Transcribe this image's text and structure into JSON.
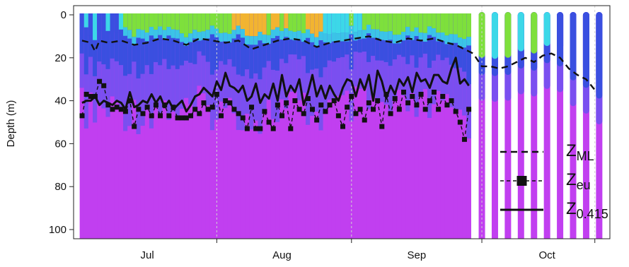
{
  "chart_data": {
    "type": "heatmap",
    "title": "",
    "xlabel": "",
    "ylabel": "Depth (m)",
    "ylim": [
      0,
      105
    ],
    "y_reversed": true,
    "x_range_days": [
      0,
      120
    ],
    "x_ticks": [
      {
        "label": "Jul",
        "day": 15
      },
      {
        "label": "Aug",
        "day": 46
      },
      {
        "label": "Sep",
        "day": 77
      },
      {
        "label": "Oct",
        "day": 107
      }
    ],
    "x_dividers_day": [
      31,
      62,
      92,
      118
    ],
    "y_ticks": [
      0,
      20,
      40,
      60,
      80,
      100
    ],
    "grid": false,
    "legend_position": "bottom-right",
    "color_stops": {
      "surface_green": "#7ee03c",
      "bloom_orange": "#f2b431",
      "cyan": "#3cd8e8",
      "blue": "#3a4fe0",
      "violet": "#7a4ff0",
      "magenta": "#c13ff0"
    },
    "series": [
      {
        "name": "ML",
        "style": "dashed",
        "day": [
          0,
          2,
          3,
          4,
          6,
          9,
          12,
          15,
          18,
          21,
          24,
          27,
          30,
          33,
          36,
          39,
          42,
          45,
          48,
          51,
          54,
          57,
          60,
          63,
          66,
          69,
          72,
          75,
          78,
          81,
          84,
          86,
          87,
          88,
          90,
          92,
          94,
          96,
          98,
          100,
          102,
          104,
          106,
          108,
          110,
          112,
          114,
          116,
          118
        ],
        "depth": [
          12,
          13,
          17,
          12,
          13,
          12,
          14,
          13,
          11,
          12,
          14,
          11,
          12,
          13,
          12,
          16,
          14,
          12,
          11,
          12,
          15,
          13,
          12,
          11,
          10,
          12,
          13,
          11,
          12,
          11,
          13,
          14,
          15,
          16,
          18,
          24,
          24,
          25,
          24,
          22,
          20,
          22,
          19,
          18,
          20,
          25,
          28,
          30,
          35
        ]
      },
      {
        "name": "eu",
        "style": "points",
        "day": [
          0,
          1,
          2,
          3,
          4,
          5,
          6,
          7,
          8,
          9,
          10,
          11,
          12,
          13,
          14,
          15,
          16,
          17,
          18,
          19,
          20,
          21,
          22,
          23,
          24,
          25,
          26,
          27,
          28,
          29,
          30,
          31,
          32,
          33,
          34,
          35,
          36,
          37,
          38,
          39,
          40,
          41,
          42,
          43,
          44,
          45,
          46,
          47,
          48,
          49,
          50,
          51,
          52,
          53,
          54,
          55,
          56,
          57,
          58,
          59,
          60,
          61,
          62,
          63,
          64,
          65,
          66,
          67,
          68,
          69,
          70,
          71,
          72,
          73,
          74,
          75,
          76,
          77,
          78,
          79,
          80,
          81,
          82,
          83,
          84,
          85,
          86,
          87,
          88,
          89
        ],
        "depth": [
          47,
          37,
          38,
          38,
          31,
          33,
          42,
          44,
          43,
          44,
          45,
          40,
          52,
          44,
          46,
          43,
          47,
          42,
          47,
          42,
          47,
          43,
          48,
          48,
          48,
          47,
          44,
          46,
          41,
          44,
          43,
          37,
          47,
          40,
          41,
          44,
          46,
          48,
          53,
          43,
          53,
          53,
          45,
          50,
          53,
          42,
          47,
          41,
          53,
          40,
          44,
          46,
          39,
          44,
          49,
          42,
          45,
          42,
          40,
          47,
          52,
          43,
          38,
          46,
          44,
          49,
          41,
          44,
          40,
          52,
          37,
          46,
          39,
          44,
          36,
          41,
          38,
          42,
          37,
          44,
          40,
          36,
          44,
          38,
          42,
          40,
          45,
          50,
          58,
          44
        ]
      },
      {
        "name": "0.415",
        "style": "line",
        "day": [
          0,
          1,
          2,
          3,
          4,
          5,
          6,
          7,
          8,
          9,
          10,
          11,
          12,
          13,
          14,
          15,
          16,
          17,
          18,
          19,
          20,
          21,
          22,
          23,
          24,
          25,
          26,
          27,
          28,
          29,
          30,
          31,
          32,
          33,
          34,
          35,
          36,
          37,
          38,
          39,
          40,
          41,
          42,
          43,
          44,
          45,
          46,
          47,
          48,
          49,
          50,
          51,
          52,
          53,
          54,
          55,
          56,
          57,
          58,
          59,
          60,
          61,
          62,
          63,
          64,
          65,
          66,
          67,
          68,
          69,
          70,
          71,
          72,
          73,
          74,
          75,
          76,
          77,
          78,
          79,
          80,
          81,
          82,
          83,
          84,
          85,
          86,
          87,
          88,
          89
        ],
        "depth": [
          41,
          40,
          40,
          38,
          42,
          40,
          41,
          42,
          40,
          41,
          44,
          36,
          43,
          42,
          40,
          41,
          37,
          41,
          38,
          43,
          40,
          44,
          42,
          40,
          45,
          42,
          38,
          37,
          34,
          36,
          38,
          31,
          35,
          27,
          33,
          34,
          36,
          33,
          40,
          38,
          32,
          41,
          37,
          39,
          32,
          40,
          28,
          38,
          33,
          36,
          30,
          42,
          36,
          28,
          38,
          33,
          39,
          33,
          37,
          40,
          34,
          30,
          31,
          38,
          30,
          35,
          28,
          40,
          26,
          31,
          39,
          33,
          37,
          30,
          33,
          29,
          36,
          27,
          31,
          30,
          34,
          28,
          28,
          31,
          32,
          25,
          20,
          32,
          30,
          33
        ]
      }
    ],
    "legend": [
      {
        "base": "Z",
        "sub": "ML",
        "style": "dashed"
      },
      {
        "base": "Z",
        "sub": "eu",
        "style": "points"
      },
      {
        "base": "Z",
        "sub": "0.415",
        "style": "line"
      }
    ]
  }
}
